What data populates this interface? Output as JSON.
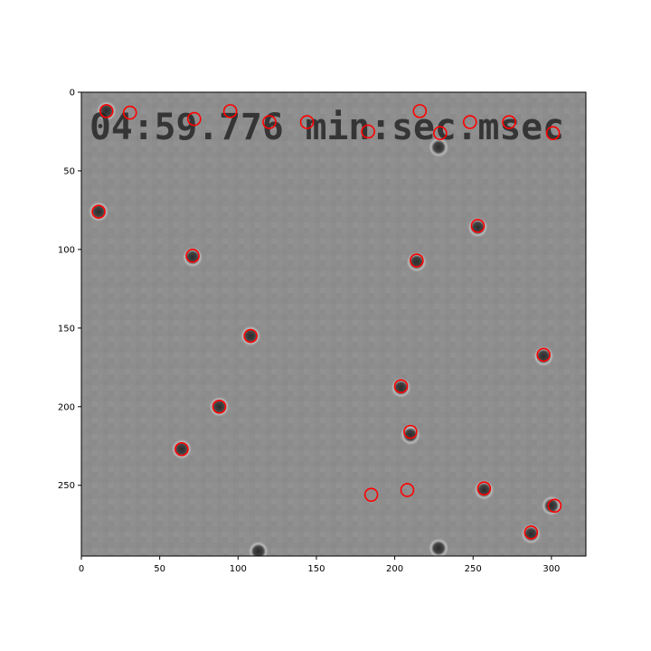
{
  "chart_data": {
    "type": "scatter",
    "image_overlay_text": "04:59.776 min:sec.msec",
    "xlim": [
      0,
      322
    ],
    "ylim": [
      295,
      0
    ],
    "y_inverted": true,
    "grid": false,
    "xticks": [
      0,
      50,
      100,
      150,
      200,
      250,
      300
    ],
    "yticks": [
      0,
      50,
      100,
      150,
      200,
      250
    ],
    "marker": {
      "shape": "circle",
      "fill": "none",
      "color": "#ff0000"
    },
    "points": [
      {
        "x": 16,
        "y": 12
      },
      {
        "x": 31,
        "y": 13
      },
      {
        "x": 72,
        "y": 17
      },
      {
        "x": 95,
        "y": 12
      },
      {
        "x": 120,
        "y": 19
      },
      {
        "x": 144,
        "y": 19
      },
      {
        "x": 183,
        "y": 25
      },
      {
        "x": 216,
        "y": 12
      },
      {
        "x": 229,
        "y": 26
      },
      {
        "x": 248,
        "y": 19
      },
      {
        "x": 273,
        "y": 19
      },
      {
        "x": 301,
        "y": 26
      },
      {
        "x": 11,
        "y": 76
      },
      {
        "x": 253,
        "y": 85
      },
      {
        "x": 71,
        "y": 104
      },
      {
        "x": 214,
        "y": 107
      },
      {
        "x": 108,
        "y": 155
      },
      {
        "x": 295,
        "y": 167
      },
      {
        "x": 204,
        "y": 187
      },
      {
        "x": 88,
        "y": 200
      },
      {
        "x": 210,
        "y": 216
      },
      {
        "x": 64,
        "y": 227
      },
      {
        "x": 257,
        "y": 252
      },
      {
        "x": 208,
        "y": 253
      },
      {
        "x": 185,
        "y": 256
      },
      {
        "x": 302,
        "y": 263
      },
      {
        "x": 287,
        "y": 280
      }
    ],
    "particles": [
      {
        "x": 16,
        "y": 12
      },
      {
        "x": 11,
        "y": 76
      },
      {
        "x": 253,
        "y": 86
      },
      {
        "x": 71,
        "y": 105
      },
      {
        "x": 214,
        "y": 108
      },
      {
        "x": 108,
        "y": 155
      },
      {
        "x": 295,
        "y": 168
      },
      {
        "x": 204,
        "y": 188
      },
      {
        "x": 88,
        "y": 200
      },
      {
        "x": 210,
        "y": 218
      },
      {
        "x": 64,
        "y": 227
      },
      {
        "x": 257,
        "y": 253
      },
      {
        "x": 300,
        "y": 263
      },
      {
        "x": 287,
        "y": 281
      },
      {
        "x": 228,
        "y": 35
      },
      {
        "x": 113,
        "y": 292
      },
      {
        "x": 228,
        "y": 290
      }
    ]
  }
}
